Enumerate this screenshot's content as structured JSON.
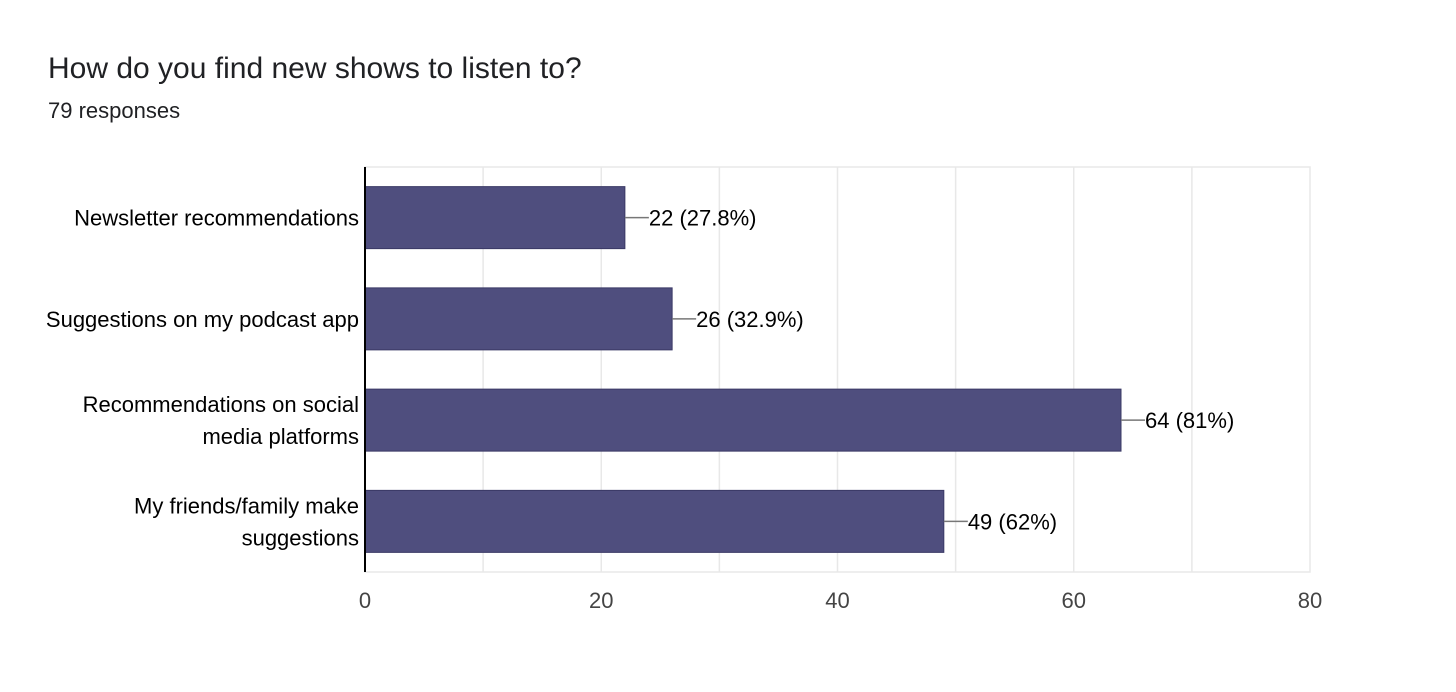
{
  "header": {
    "title": "How do you find new shows to listen to?",
    "subtitle": "79 responses"
  },
  "colors": {
    "bar": "#4f4e7e",
    "bar_stroke": "#3a3966",
    "grid": "#e8e8e8",
    "axis": "#000000",
    "leader": "#777777"
  },
  "chart_data": {
    "type": "bar",
    "orientation": "horizontal",
    "title": "How do you find new shows to listen to?",
    "subtitle": "79 responses",
    "categories": [
      [
        "Newsletter recommendations"
      ],
      [
        "Suggestions on my podcast app"
      ],
      [
        "Recommendations on social",
        "media platforms"
      ],
      [
        "My friends/family make",
        "suggestions"
      ]
    ],
    "values": [
      22,
      26,
      64,
      49
    ],
    "value_labels": [
      "22 (27.8%)",
      "26 (32.9%)",
      "64 (81%)",
      "49 (62%)"
    ],
    "xlim": [
      0,
      80
    ],
    "xticks": [
      0,
      20,
      40,
      60,
      80
    ],
    "grid": true,
    "xlabel": "",
    "ylabel": ""
  }
}
